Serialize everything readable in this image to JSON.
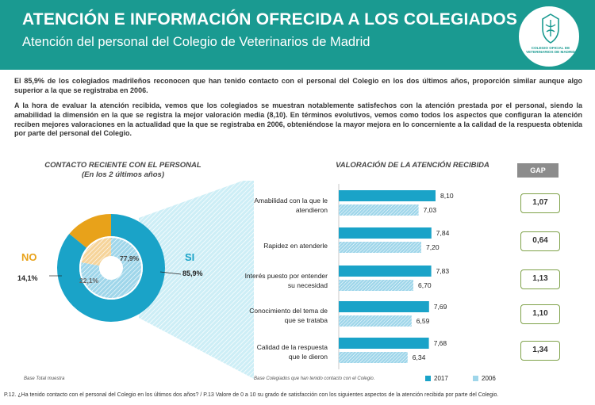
{
  "header": {
    "title": "ATENCIÓN E INFORMACIÓN OFRECIDA A  LOS COLEGIADOS",
    "subtitle": "Atención del personal del Colegio de Veterinarios de Madrid",
    "logo_text": "COLEGIO OFICIAL DE VETERINARIOS DE MADRID"
  },
  "paragraphs": {
    "p1": "El 85,9% de los colegiados madrileños reconocen que han tenido contacto con el personal del Colegio en los  dos últimos años, proporción similar aunque algo superior a la que se registraba en 2006.",
    "p2": "A la hora de evaluar la atención recibida, vemos que los colegiados se muestran notablemente satisfechos  con la atención prestada por el personal, siendo la amabilidad la dimensión en la que se registra la mejor valoración media (8,10). En términos evolutivos, vemos como todos los aspectos que configuran la atención reciben mejores valoraciones en la actualidad que la que se registraba en 2006, obteniéndose la mayor mejora en lo concerniente a la calidad de la respuesta obtenida por parte del personal del Colegio."
  },
  "left_chart": {
    "title": "CONTACTO RECIENTE CON EL PERSONAL",
    "subtitle": "(En los 2 últimos años)",
    "base_note": "Base  Total muestra"
  },
  "right_chart": {
    "title": "VALORACIÓN DE LA ATENCIÓN RECIBIDA",
    "gap_header": "GAP",
    "base_note": "Base  Colegiados que han tenido contacto con el Colegio."
  },
  "footer": "P.12. ¿Ha tenido contacto con el personal del Colegio en los últimos dos años? /  P.13 Valore de 0 a 10 su grado de satisfacción con los siguientes aspectos de la atención recibida por parte del Colegio.",
  "colors": {
    "teal": "#1a9a91",
    "blue": "#1aa3c8",
    "light_blue": "#9fd6ea",
    "orange": "#e8a21a",
    "light_orange": "#f6d49a",
    "gap_border": "#7fa24a"
  },
  "chart_data": [
    {
      "type": "pie",
      "title": "CONTACTO RECIENTE CON EL PERSONAL",
      "subtitle": "(En los 2 últimos años)",
      "rings": [
        {
          "name": "outer",
          "slices": [
            {
              "label": "SI",
              "value": 85.9,
              "value_label": "85,9%"
            },
            {
              "label": "NO",
              "value": 14.1,
              "value_label": "14,1%"
            }
          ]
        },
        {
          "name": "inner",
          "slices": [
            {
              "label": "SI",
              "value": 77.9,
              "value_label": "77,9%"
            },
            {
              "label": "NO",
              "value": 22.1,
              "value_label": "22,1%"
            }
          ]
        }
      ]
    },
    {
      "type": "bar",
      "orientation": "horizontal",
      "title": "VALORACIÓN DE LA ATENCIÓN RECIBIDA",
      "categories": [
        "Amabilidad con la que le atendieron",
        "Rapidez en atenderle",
        "Interés puesto por entender su necesidad",
        "Conocimiento del tema de que se trataba",
        "Calidad de la respuesta que le dieron"
      ],
      "series": [
        {
          "name": "2017",
          "values": [
            8.1,
            7.84,
            7.83,
            7.69,
            7.68
          ],
          "labels": [
            "8,10",
            "7,84",
            "7,83",
            "7,69",
            "7,68"
          ]
        },
        {
          "name": "2006",
          "values": [
            7.03,
            7.2,
            6.7,
            6.59,
            6.34
          ],
          "labels": [
            "7,03",
            "7,20",
            "6,70",
            "6,59",
            "6,34"
          ]
        }
      ],
      "gap": [
        "1,07",
        "0,64",
        "1,13",
        "1,10",
        "1,34"
      ],
      "xlim": [
        0,
        10
      ]
    }
  ]
}
